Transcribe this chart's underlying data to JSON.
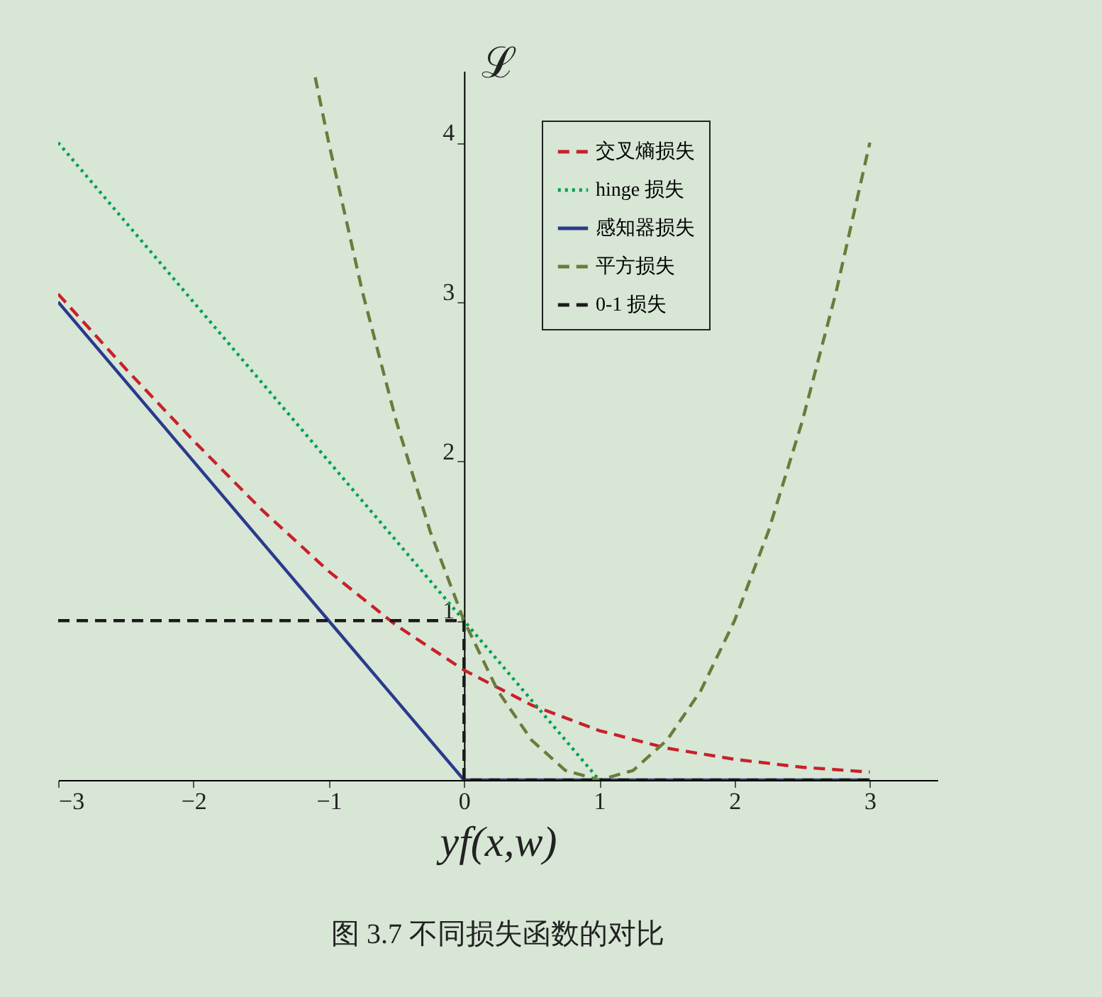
{
  "chart_data": {
    "type": "line",
    "xlabel": "yf(x,w)",
    "ylabel": "ℒ",
    "annotations": [
      "图 3.7 不同损失函数的对比"
    ],
    "xlim": [
      -3,
      3.5
    ],
    "ylim": [
      0,
      4.45
    ],
    "xticks": [
      {
        "value": -3,
        "label": "−3"
      },
      {
        "value": -2,
        "label": "−2"
      },
      {
        "value": -1,
        "label": "−1"
      },
      0,
      1,
      2,
      3
    ],
    "yticks": [
      1,
      2,
      3,
      4
    ],
    "grid": false,
    "legend": "top right",
    "marker": "none",
    "series": [
      {
        "name": "交叉熵损失",
        "color": "#c8202a",
        "line_style": "dashed",
        "x": [
          -3,
          -2.5,
          -2,
          -1.5,
          -1,
          -0.5,
          0,
          0.5,
          1,
          1.5,
          2,
          2.5,
          3
        ],
        "values": [
          3.05,
          2.58,
          2.13,
          1.7,
          1.31,
          0.97,
          0.69,
          0.47,
          0.31,
          0.2,
          0.13,
          0.08,
          0.05
        ]
      },
      {
        "name": "hinge 损失",
        "color": "#00a050",
        "line_style": "dotted",
        "x": [
          -3,
          1
        ],
        "values": [
          4,
          0
        ]
      },
      {
        "name": "感知器损失",
        "color": "#2b3a8c",
        "line_style": "solid",
        "x": [
          -3,
          0,
          3
        ],
        "values": [
          3,
          0,
          0
        ]
      },
      {
        "name": "平方损失",
        "color": "#6b7b3a",
        "line_style": "dashed",
        "x": [
          -1.1,
          -1,
          -0.75,
          -0.5,
          -0.25,
          0,
          0.25,
          0.5,
          0.75,
          1,
          1.25,
          1.5,
          1.75,
          2,
          2.25,
          2.5,
          2.75,
          3
        ],
        "values": [
          4.41,
          4,
          3.06,
          2.25,
          1.56,
          1,
          0.56,
          0.25,
          0.06,
          0,
          0.06,
          0.25,
          0.56,
          1,
          1.56,
          2.25,
          3.06,
          4
        ]
      },
      {
        "name": "0-1 损失",
        "color": "#1a1a1a",
        "line_style": "dashed",
        "x": [
          -3,
          0,
          0,
          3
        ],
        "values": [
          1,
          1,
          0,
          0
        ]
      }
    ]
  }
}
